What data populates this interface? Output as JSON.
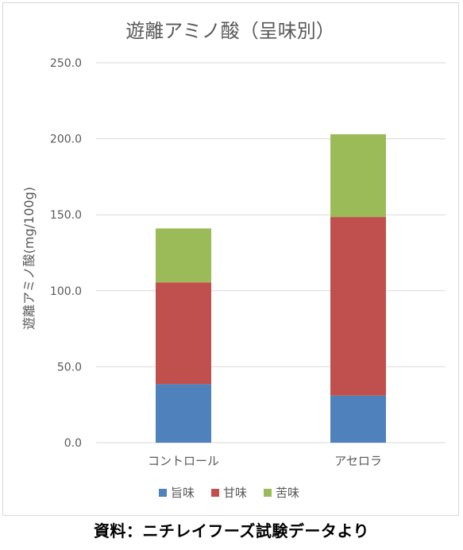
{
  "chart_data": {
    "type": "bar",
    "stacked": true,
    "title": "遊離アミノ酸（呈味別）",
    "xlabel": "",
    "ylabel": "遊離アミノ酸(mg/100g)",
    "ylim": [
      0,
      250
    ],
    "yticks": [
      0,
      50,
      100,
      150,
      200,
      250
    ],
    "ytick_labels": [
      "0.0",
      "50.0",
      "100.0",
      "150.0",
      "200.0",
      "250.0"
    ],
    "grid": true,
    "legend_position": "bottom",
    "categories": [
      "コントロール",
      "アセロラ"
    ],
    "series": [
      {
        "name": "旨味",
        "color": "#4f81bd",
        "values": [
          38.5,
          31.0
        ]
      },
      {
        "name": "甘味",
        "color": "#c0504d",
        "values": [
          67.0,
          117.5
        ]
      },
      {
        "name": "苦味",
        "color": "#9bbb59",
        "values": [
          35.5,
          54.5
        ]
      }
    ]
  },
  "source_note": "資料：ニチレイフーズ試験データより"
}
